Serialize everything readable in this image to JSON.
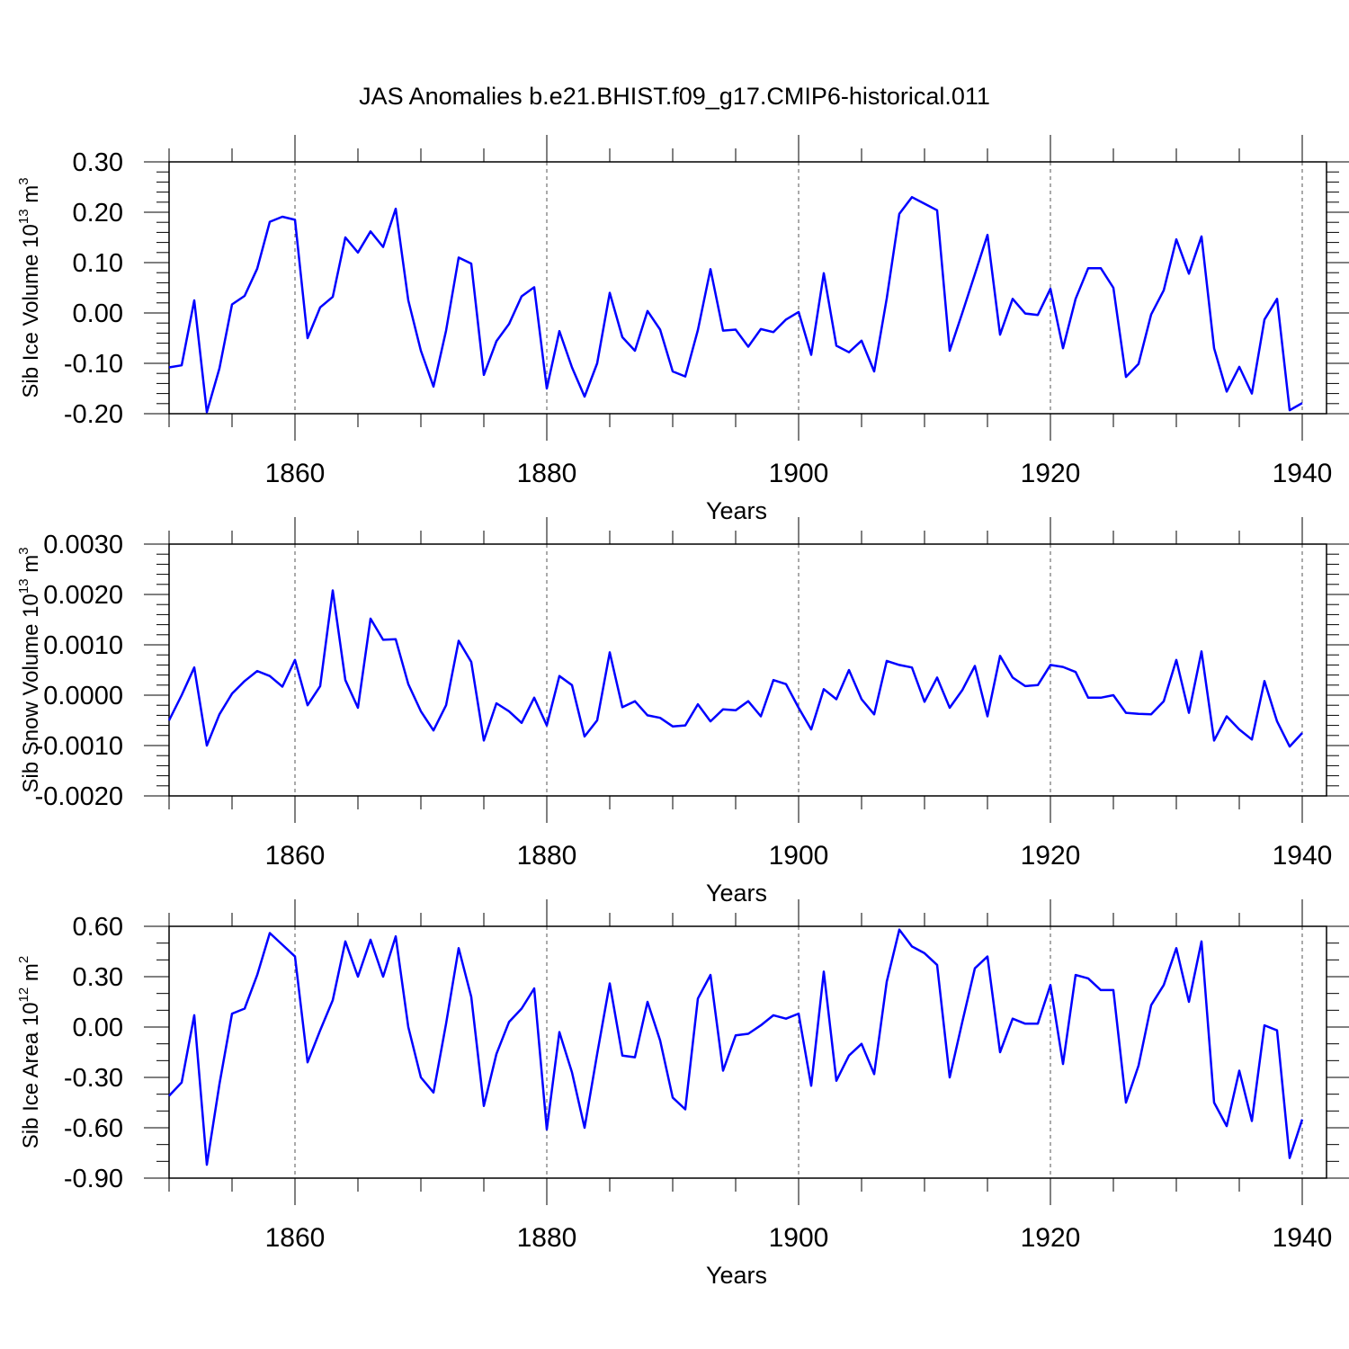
{
  "title": "JAS Anomalies b.e21.BHIST.f09_g17.CMIP6-historical.011",
  "chart_data": [
    {
      "type": "line",
      "title": "",
      "xlabel": "Years",
      "ylabel": {
        "text": "Sib Ice Volume 10",
        "sup": "13",
        "unit": "m",
        "unit_sup": "3"
      },
      "xlim": [
        1850,
        1940
      ],
      "ylim": [
        -0.2,
        0.3
      ],
      "xticks": [
        1860,
        1880,
        1900,
        1920,
        1940
      ],
      "xtick_labels": [
        "1860",
        "1880",
        "1900",
        "1920",
        "1940"
      ],
      "yticks": [
        -0.2,
        -0.1,
        0.0,
        0.1,
        0.2,
        0.3
      ],
      "ytick_labels": [
        "-0.20",
        "-0.10",
        "0.00",
        "0.10",
        "0.20",
        "0.30"
      ],
      "y_minor_step": 0.02,
      "line_color": "#0000ff",
      "grid": "vertical dashed at major x ticks",
      "x_start": 1850,
      "series": [
        {
          "values": [
            -0.108,
            -0.104,
            0.025,
            -0.197,
            -0.11,
            0.017,
            0.034,
            0.088,
            0.181,
            0.191,
            0.185,
            -0.05,
            0.011,
            0.032,
            0.15,
            0.12,
            0.162,
            0.131,
            0.207,
            0.025,
            -0.075,
            -0.146,
            -0.035,
            0.11,
            0.098,
            -0.123,
            -0.056,
            -0.022,
            0.033,
            0.051,
            -0.15,
            -0.036,
            -0.108,
            -0.166,
            -0.1,
            0.04,
            -0.048,
            -0.075,
            0.004,
            -0.033,
            -0.116,
            -0.126,
            -0.034,
            0.087,
            -0.035,
            -0.033,
            -0.067,
            -0.032,
            -0.038,
            -0.013,
            0.002,
            -0.083,
            0.079,
            -0.065,
            -0.078,
            -0.055,
            -0.116,
            0.029,
            0.197,
            0.23,
            0.217,
            0.204,
            -0.075,
            0.0,
            0.077,
            0.155,
            -0.043,
            0.028,
            -0.001,
            -0.004,
            0.048,
            -0.07,
            0.028,
            0.089,
            0.089,
            0.05,
            -0.127,
            -0.101,
            -0.003,
            0.045,
            0.146,
            0.078,
            0.152,
            -0.07,
            -0.156,
            -0.107,
            -0.16,
            -0.013,
            0.028,
            -0.193,
            -0.179
          ]
        }
      ]
    },
    {
      "type": "line",
      "title": "",
      "xlabel": "Years",
      "ylabel": {
        "text": "Sib Snow Volume 10",
        "sup": "13",
        "unit": "m",
        "unit_sup": "3"
      },
      "xlim": [
        1850,
        1940
      ],
      "ylim": [
        -0.002,
        0.003
      ],
      "xticks": [
        1860,
        1880,
        1900,
        1920,
        1940
      ],
      "xtick_labels": [
        "1860",
        "1880",
        "1900",
        "1920",
        "1940"
      ],
      "yticks": [
        -0.002,
        -0.001,
        0.0,
        0.001,
        0.002,
        0.003
      ],
      "ytick_labels": [
        "-0.0020",
        "-0.0010",
        "0.0000",
        "0.0010",
        "0.0020",
        "0.0030"
      ],
      "y_minor_step": 0.0002,
      "line_color": "#0000ff",
      "grid": "vertical dashed at major x ticks",
      "x_start": 1850,
      "series": [
        {
          "values": [
            -0.0005,
            0.0,
            0.00055,
            -0.001,
            -0.00038,
            3e-05,
            0.00028,
            0.00048,
            0.00038,
            0.00017,
            0.0007,
            -0.0002,
            0.00018,
            0.00208,
            0.0003,
            -0.00025,
            0.00152,
            0.0011,
            0.00111,
            0.00022,
            -0.00032,
            -0.0007,
            -0.0002,
            0.00108,
            0.00066,
            -0.0009,
            -0.00016,
            -0.00032,
            -0.00055,
            -5e-05,
            -0.0006,
            0.00038,
            0.0002,
            -0.00082,
            -0.0005,
            0.00085,
            -0.00024,
            -0.00012,
            -0.0004,
            -0.00045,
            -0.00062,
            -0.0006,
            -0.00018,
            -0.00052,
            -0.00028,
            -0.0003,
            -0.00012,
            -0.00042,
            0.0003,
            0.00022,
            -0.00025,
            -0.00068,
            0.00012,
            -8e-05,
            0.0005,
            -8e-05,
            -0.00038,
            0.00068,
            0.0006,
            0.00055,
            -0.00013,
            0.00035,
            -0.00025,
            0.0001,
            0.00058,
            -0.00042,
            0.00078,
            0.00035,
            0.00018,
            0.0002,
            0.0006,
            0.00056,
            0.00046,
            -5e-05,
            -5e-05,
            0.0,
            -0.00035,
            -0.00037,
            -0.00038,
            -0.00012,
            0.0007,
            -0.00035,
            0.00087,
            -0.0009,
            -0.00042,
            -0.00068,
            -0.00088,
            0.00028,
            -0.00052,
            -0.00102,
            -0.00075
          ]
        }
      ]
    },
    {
      "type": "line",
      "title": "",
      "xlabel": "Years",
      "ylabel": {
        "text": "Sib Ice Area 10",
        "sup": "12",
        "unit": "m",
        "unit_sup": "2"
      },
      "xlim": [
        1850,
        1940
      ],
      "ylim": [
        -0.9,
        0.6
      ],
      "xticks": [
        1860,
        1880,
        1900,
        1920,
        1940
      ],
      "xtick_labels": [
        "1860",
        "1880",
        "1900",
        "1920",
        "1940"
      ],
      "yticks": [
        -0.9,
        -0.6,
        -0.3,
        0.0,
        0.3,
        0.6
      ],
      "ytick_labels": [
        "-0.90",
        "-0.60",
        "-0.30",
        "0.00",
        "0.30",
        "0.60"
      ],
      "y_minor_step": 0.1,
      "line_color": "#0000ff",
      "grid": "vertical dashed at major x ticks",
      "x_start": 1850,
      "series": [
        {
          "values": [
            -0.41,
            -0.33,
            0.07,
            -0.82,
            -0.34,
            0.08,
            0.11,
            0.31,
            0.56,
            0.49,
            0.42,
            -0.21,
            -0.02,
            0.16,
            0.51,
            0.3,
            0.52,
            0.3,
            0.54,
            0.0,
            -0.3,
            -0.39,
            0.02,
            0.47,
            0.18,
            -0.47,
            -0.16,
            0.03,
            0.11,
            0.23,
            -0.61,
            -0.03,
            -0.27,
            -0.6,
            -0.16,
            0.26,
            -0.17,
            -0.18,
            0.15,
            -0.08,
            -0.42,
            -0.49,
            0.17,
            0.31,
            -0.26,
            -0.05,
            -0.04,
            0.01,
            0.07,
            0.05,
            0.08,
            -0.35,
            0.33,
            -0.32,
            -0.17,
            -0.1,
            -0.28,
            0.27,
            0.58,
            0.48,
            0.44,
            0.37,
            -0.3,
            0.03,
            0.35,
            0.42,
            -0.15,
            0.05,
            0.02,
            0.02,
            0.25,
            -0.22,
            0.31,
            0.29,
            0.22,
            0.22,
            -0.45,
            -0.23,
            0.13,
            0.25,
            0.47,
            0.15,
            0.51,
            -0.45,
            -0.59,
            -0.26,
            -0.56,
            0.01,
            -0.02,
            -0.78,
            -0.55
          ]
        }
      ]
    }
  ]
}
